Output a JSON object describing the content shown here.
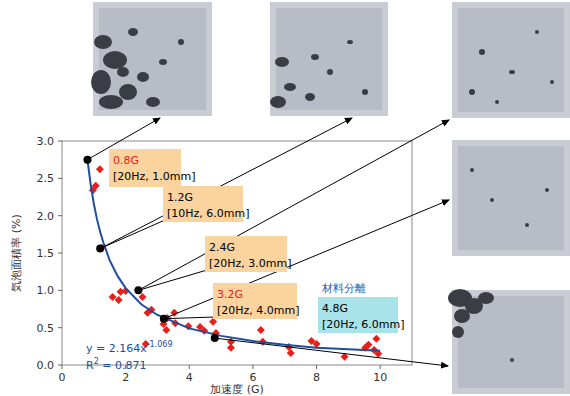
{
  "chart_data": {
    "type": "scatter",
    "x_label": "加速度 (G)",
    "y_label": "気泡面積率 (%)",
    "xlim": [
      0,
      11
    ],
    "ylim": [
      0,
      3
    ],
    "xticks": [
      0,
      2,
      4,
      6,
      8,
      10
    ],
    "yticks": [
      {
        "value": 0,
        "label": "0.0"
      },
      {
        "value": 0.5,
        "label": "0.5"
      },
      {
        "value": 1,
        "label": "1.0"
      },
      {
        "value": 1.5,
        "label": "1.5"
      },
      {
        "value": 2,
        "label": "2.0"
      },
      {
        "value": 2.5,
        "label": "2.5"
      },
      {
        "value": 3,
        "label": "3.0"
      }
    ],
    "grid": false,
    "series": [
      {
        "type": "scatter",
        "marker": "diamond",
        "color": "#e8201a",
        "x": [
          0.81,
          0.97,
          1.06,
          1.19,
          1.25,
          1.59,
          1.78,
          1.84,
          2.0,
          2.53,
          2.63,
          2.69,
          2.81,
          3.19,
          3.28,
          3.31,
          3.53,
          3.56,
          3.97,
          4.34,
          4.47,
          4.75,
          4.84,
          5.31,
          5.31,
          6.25,
          6.31,
          7.13,
          7.19,
          7.84,
          8.0,
          8.88,
          9.53,
          9.63,
          9.81,
          9.88,
          9.94
        ],
        "values": [
          2.74,
          2.34,
          2.4,
          2.62,
          1.57,
          0.91,
          0.87,
          0.98,
          0.99,
          0.91,
          0.28,
          0.7,
          0.74,
          0.55,
          0.47,
          0.63,
          0.7,
          0.56,
          0.52,
          0.51,
          0.46,
          0.58,
          0.43,
          0.31,
          0.23,
          0.47,
          0.31,
          0.24,
          0.16,
          0.32,
          0.28,
          0.11,
          0.23,
          0.27,
          0.2,
          0.35,
          0.15
        ]
      },
      {
        "type": "line",
        "line_style": "solid",
        "color": "#1f4e9c",
        "x": [
          0.8,
          0.9,
          1,
          1.1,
          1.2,
          1.3,
          1.5,
          1.75,
          2,
          2.5,
          3,
          4,
          5,
          6,
          7,
          8,
          9,
          10
        ],
        "values": [
          2.75,
          2.42,
          2.16,
          1.95,
          1.78,
          1.64,
          1.4,
          1.19,
          1.03,
          0.81,
          0.67,
          0.49,
          0.39,
          0.32,
          0.27,
          0.23,
          0.21,
          0.19
        ]
      },
      {
        "type": "scatter",
        "marker": "circle",
        "color": "#000000",
        "x": [
          0.8,
          1.2,
          2.4,
          3.2,
          4.8
        ],
        "values": [
          2.75,
          1.56,
          1.0,
          0.62,
          0.36
        ]
      }
    ],
    "annotations": [
      {
        "label": "0.8G",
        "condition": "[20Hz, 1.0mm]",
        "point": 0,
        "color": "#e8201a"
      },
      {
        "label": "1.2G",
        "condition": "[10Hz, 6.0mm]",
        "point": 1,
        "color": "#000000"
      },
      {
        "label": "2.4G",
        "condition": "[20Hz, 3.0mm]",
        "point": 2,
        "color": "#000000"
      },
      {
        "label": "3.2G",
        "condition": "[20Hz, 4.0mm]",
        "point": 3,
        "color": "#e8201a"
      },
      {
        "label": "4.8G",
        "condition": "[20Hz, 6.0mm]",
        "point": 4,
        "color": "#000000",
        "note": "材料分離"
      }
    ],
    "equation": {
      "text": "y = 2.164x",
      "sup": "-1.069"
    },
    "r2": {
      "text": "R",
      "sup": "2",
      "tail": " = 0.871"
    }
  }
}
